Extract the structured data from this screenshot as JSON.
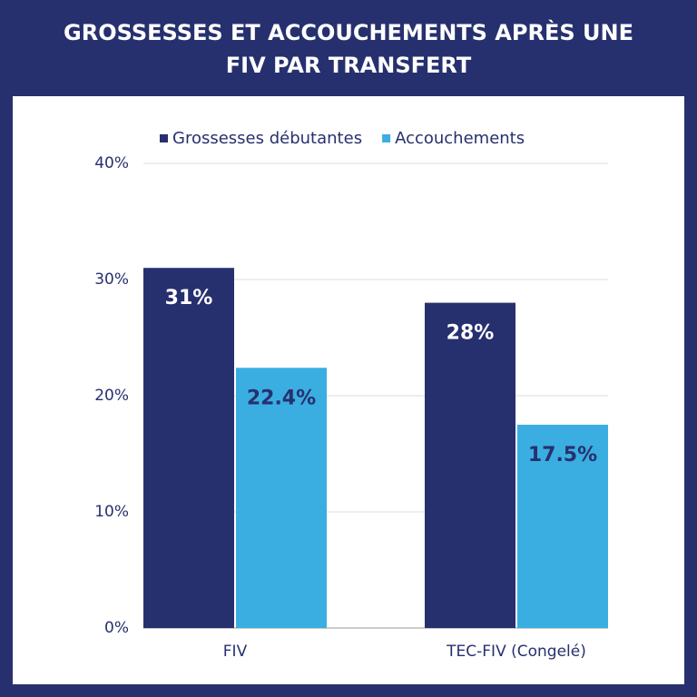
{
  "chart_data": {
    "type": "bar",
    "title": "GROSSESSES ET ACCOUCHEMENTS APRÈS UNE FIV PAR TRANSFERT",
    "categories": [
      "FIV",
      "TEC-FIV (Congelé)"
    ],
    "series": [
      {
        "name": "Grossesses débutantes",
        "color": "#27306f",
        "label_color": "#ffffff",
        "values": [
          31,
          28
        ],
        "value_labels": [
          "31%",
          "28%"
        ]
      },
      {
        "name": "Accouchements",
        "color": "#3aaee0",
        "label_color": "#27306f",
        "values": [
          22.4,
          17.5
        ],
        "value_labels": [
          "22.4%",
          "17.5%"
        ]
      }
    ],
    "ylim": [
      0,
      40
    ],
    "yticks": [
      {
        "value": 0,
        "label": "0%"
      },
      {
        "value": 10,
        "label": "10%"
      },
      {
        "value": 20,
        "label": "20%"
      },
      {
        "value": 30,
        "label": "30%"
      },
      {
        "value": 40,
        "label": "40%"
      }
    ],
    "grid": true
  }
}
